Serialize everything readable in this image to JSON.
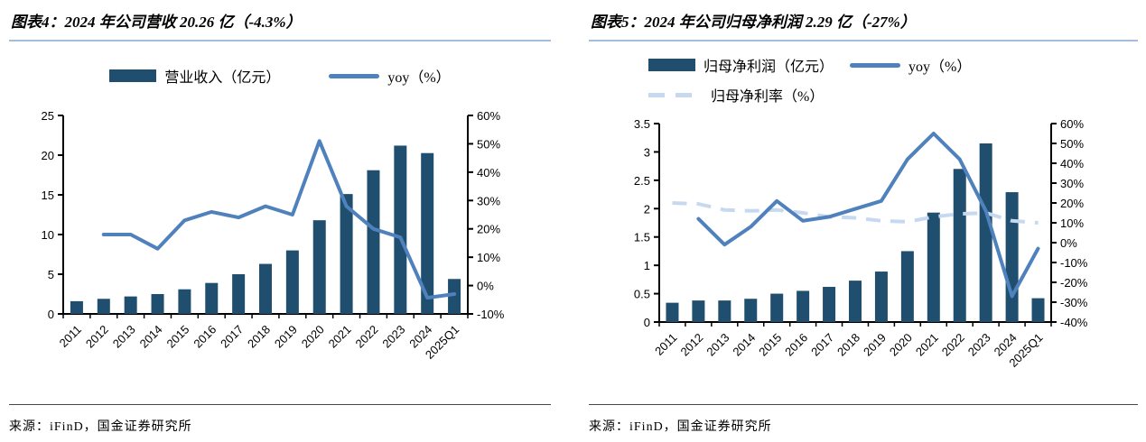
{
  "colors": {
    "bar": "#1f4e6e",
    "line": "#4f81bd",
    "dashed": "#c6d9f1",
    "axis": "#000000",
    "title_divider": "#a3bed8",
    "source_divider": "#474747"
  },
  "chart_data": [
    {
      "type": "bar+line",
      "title": "图表4：2024 年公司营收 20.26 亿（-4.3%）",
      "source": "来源：iFinD，国金证券研究所",
      "categories": [
        "2011",
        "2012",
        "2013",
        "2014",
        "2015",
        "2016",
        "2017",
        "2018",
        "2019",
        "2020",
        "2021",
        "2022",
        "2023",
        "2024",
        "2025Q1"
      ],
      "series": [
        {
          "name": "营业收入（亿元）",
          "type": "bar",
          "axis": "left",
          "values": [
            1.6,
            1.9,
            2.2,
            2.5,
            3.1,
            3.9,
            5.0,
            6.3,
            8.0,
            11.8,
            15.1,
            18.1,
            21.2,
            20.26,
            4.4
          ]
        },
        {
          "name": "yoy（%）",
          "type": "line",
          "axis": "right",
          "values": [
            null,
            18,
            18,
            13,
            23,
            26,
            24,
            28,
            25,
            51,
            28,
            20,
            17,
            -4.3,
            -3
          ]
        }
      ],
      "left_axis": {
        "min": 0,
        "max": 25,
        "ticks": [
          [
            0,
            "0"
          ],
          [
            5,
            "5"
          ],
          [
            10,
            "10"
          ],
          [
            15,
            "15"
          ],
          [
            20,
            "20"
          ],
          [
            25,
            "25"
          ]
        ]
      },
      "right_axis": {
        "min": -10,
        "max": 60,
        "ticks": [
          [
            -10,
            "-10%"
          ],
          [
            0,
            "0%"
          ],
          [
            10,
            "10%"
          ],
          [
            20,
            "20%"
          ],
          [
            30,
            "30%"
          ],
          [
            40,
            "40%"
          ],
          [
            50,
            "50%"
          ],
          [
            60,
            "60%"
          ]
        ]
      },
      "legend_position": "top-center",
      "grid": false
    },
    {
      "type": "bar+line",
      "title": "图表5：2024 年公司归母净利润 2.29 亿（-27%）",
      "source": "来源：iFinD，国金证券研究所",
      "categories": [
        "2011",
        "2012",
        "2013",
        "2014",
        "2015",
        "2016",
        "2017",
        "2018",
        "2019",
        "2020",
        "2021",
        "2022",
        "2023",
        "2024",
        "2025Q1"
      ],
      "series": [
        {
          "name": "归母净利润（亿元）",
          "type": "bar",
          "axis": "left",
          "values": [
            0.34,
            0.38,
            0.38,
            0.41,
            0.5,
            0.55,
            0.62,
            0.73,
            0.89,
            1.25,
            1.93,
            2.7,
            3.15,
            2.29,
            0.42
          ]
        },
        {
          "name": "yoy（%）",
          "type": "line",
          "axis": "right",
          "values": [
            null,
            12,
            -1,
            8,
            21,
            11,
            13,
            17,
            21,
            42,
            55,
            42,
            16,
            -27,
            -3
          ]
        },
        {
          "name": "归母净利率（%）",
          "type": "dashed_line",
          "axis": "right",
          "values": [
            20,
            19.5,
            16.5,
            16,
            16.5,
            15,
            13,
            12.5,
            11,
            10.5,
            13,
            14.5,
            15,
            11,
            10
          ]
        }
      ],
      "left_axis": {
        "min": 0,
        "max": 3.5,
        "ticks": [
          [
            0,
            "0"
          ],
          [
            0.5,
            "0.5"
          ],
          [
            1,
            "1"
          ],
          [
            1.5,
            "1.5"
          ],
          [
            2,
            "2"
          ],
          [
            2.5,
            "2.5"
          ],
          [
            3,
            "3"
          ],
          [
            3.5,
            "3.5"
          ]
        ]
      },
      "right_axis": {
        "min": -40,
        "max": 60,
        "ticks": [
          [
            -40,
            "-40%"
          ],
          [
            -30,
            "-30%"
          ],
          [
            -20,
            "-20%"
          ],
          [
            -10,
            "-10%"
          ],
          [
            0,
            "0%"
          ],
          [
            10,
            "10%"
          ],
          [
            20,
            "20%"
          ],
          [
            30,
            "30%"
          ],
          [
            40,
            "40%"
          ],
          [
            50,
            "50%"
          ],
          [
            60,
            "60%"
          ]
        ]
      },
      "legend_position": "top-left",
      "grid": false
    }
  ]
}
